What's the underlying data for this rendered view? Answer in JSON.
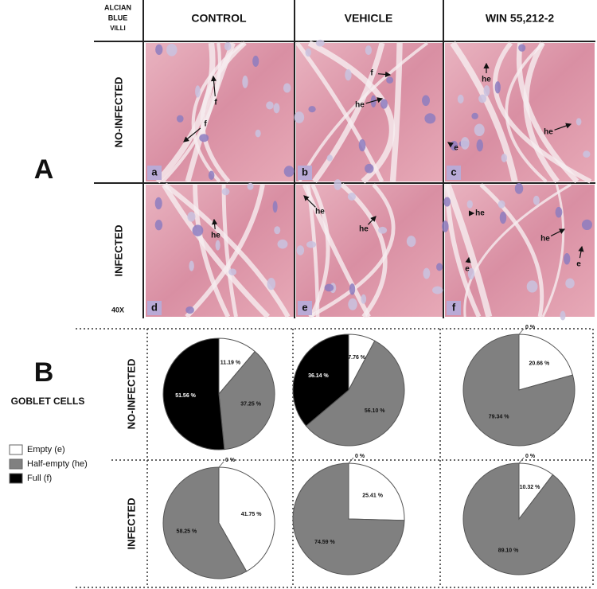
{
  "panel_a": {
    "letter": "A",
    "stain": [
      "ALCIAN",
      "BLUE",
      "VILLI"
    ],
    "columns": [
      "CONTROL",
      "VEHICLE",
      "WIN 55,212-2"
    ],
    "rows": [
      "NO-INFECTED",
      "INFECTED"
    ],
    "magnification": "40X",
    "images": [
      {
        "letter": "a",
        "labels": [
          "f",
          "f"
        ]
      },
      {
        "letter": "b",
        "labels": [
          "f",
          "he"
        ]
      },
      {
        "letter": "c",
        "labels": [
          "he",
          "he",
          "e"
        ]
      },
      {
        "letter": "d",
        "labels": [
          "he"
        ]
      },
      {
        "letter": "e",
        "labels": [
          "he",
          "he"
        ]
      },
      {
        "letter": "f",
        "labels": [
          "he",
          "he",
          "e",
          "e"
        ]
      }
    ]
  },
  "panel_b": {
    "letter": "B",
    "title": "GOBLET CELLS",
    "rows": [
      "NO-INFECTED",
      "INFECTED"
    ],
    "legend": {
      "labels": [
        "Empty (e)",
        "Half-empty (he)",
        "Full (f)"
      ],
      "colors": [
        "#ffffff",
        "#808080",
        "#000000"
      ]
    }
  },
  "chart_data": [
    {
      "type": "pie",
      "values": [
        11.19,
        37.25,
        51.56
      ],
      "value_labels": [
        "11.19 %",
        "37.25 %",
        "51.56 %"
      ]
    },
    {
      "type": "pie",
      "values": [
        7.76,
        56.1,
        36.14
      ],
      "value_labels": [
        "7.76 %",
        "56.10 %",
        "36.14 %"
      ]
    },
    {
      "type": "pie",
      "values": [
        20.66,
        79.34,
        0
      ],
      "value_labels": [
        "20.66 %",
        "79.34 %",
        "0 %"
      ]
    },
    {
      "type": "pie",
      "values": [
        41.75,
        58.25,
        0
      ],
      "value_labels": [
        "41.75 %",
        "58.25 %",
        "0 %"
      ]
    },
    {
      "type": "pie",
      "values": [
        25.41,
        74.59,
        0
      ],
      "value_labels": [
        "25.41 %",
        "74.59 %",
        "0 %"
      ]
    },
    {
      "type": "pie",
      "values": [
        10.32,
        89.1,
        0
      ],
      "value_labels": [
        "10.32 %",
        "89.10 %",
        "0 %"
      ]
    }
  ]
}
